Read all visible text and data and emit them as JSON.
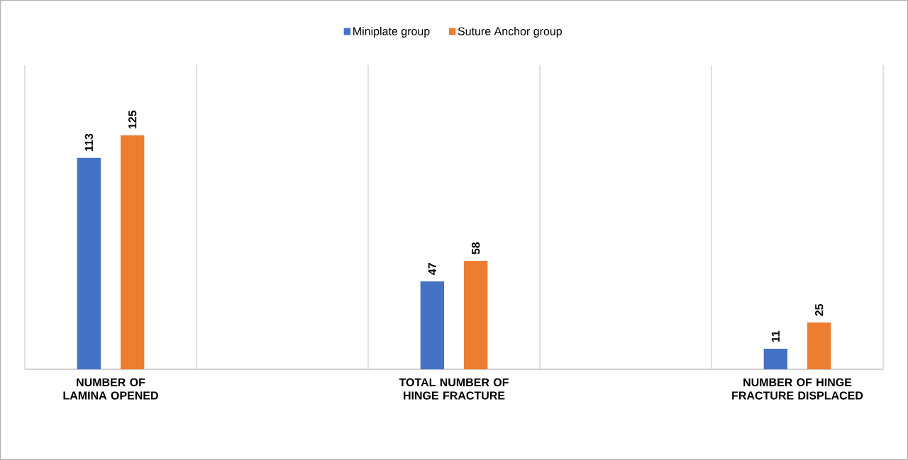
{
  "chart_data": {
    "type": "bar",
    "categories": [
      "NUMBER OF LAMINA OPENED",
      "TOTAL NUMBER OF HINGE FRACTURE",
      "NUMBER OF HINGE FRACTURE DISPLACED"
    ],
    "series": [
      {
        "name": "Miniplate group",
        "color": "#4472c4",
        "values": [
          113,
          47,
          11
        ]
      },
      {
        "name": "Suture Anchor group",
        "color": "#ed7d31",
        "values": [
          125,
          58,
          25
        ]
      }
    ],
    "data_labels": true,
    "grid": "x",
    "legend": "top"
  }
}
